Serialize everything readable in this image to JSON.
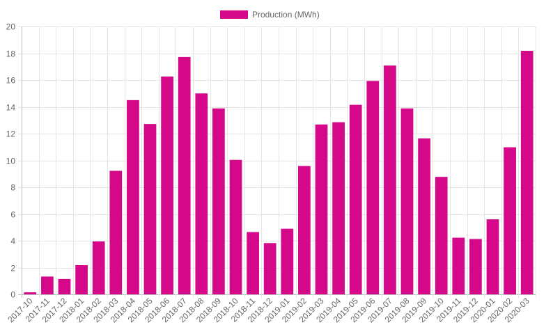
{
  "colors": {
    "bar": "#d6088a",
    "grid": "#e5e5e5",
    "axis": "#bdbdbd",
    "text": "#666666"
  },
  "chart_data": {
    "type": "bar",
    "title": "",
    "xlabel": "",
    "ylabel": "",
    "legend": {
      "position": "top-center"
    },
    "grid": true,
    "ylim": [
      0,
      20
    ],
    "yticks": [
      0,
      2,
      4,
      6,
      8,
      10,
      12,
      14,
      16,
      18,
      20
    ],
    "categories": [
      "2017-10",
      "2017-11",
      "2017-12",
      "2018-01",
      "2018-02",
      "2018-03",
      "2018-04",
      "2018-05",
      "2018-06",
      "2018-07",
      "2018-08",
      "2018-09",
      "2018-10",
      "2018-11",
      "2018-12",
      "2019-01",
      "2019-02",
      "2019-03",
      "2019-04",
      "2019-05",
      "2019-06",
      "2019-07",
      "2019-08",
      "2019-09",
      "2019-10",
      "2019-11",
      "2019-12",
      "2020-01",
      "2020-02",
      "2020-03"
    ],
    "series": [
      {
        "name": "Production (MWh)",
        "values": [
          0.15,
          1.33,
          1.15,
          2.18,
          3.95,
          9.22,
          14.5,
          12.72,
          16.26,
          17.72,
          15.0,
          13.88,
          10.04,
          4.65,
          3.83,
          4.9,
          9.58,
          12.68,
          12.85,
          14.15,
          15.93,
          17.08,
          13.88,
          11.64,
          8.77,
          4.23,
          4.13,
          5.6,
          10.98,
          18.18
        ]
      }
    ]
  }
}
